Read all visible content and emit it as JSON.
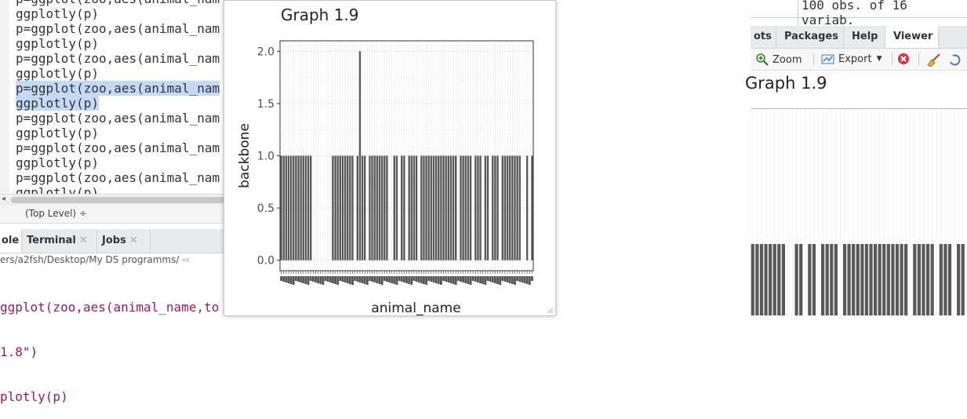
{
  "editor": {
    "code_lines": [
      "p=ggplot(zoo,aes(animal_nam",
      "ggplotly(p)",
      "p=ggplot(zoo,aes(animal_nam",
      "ggplotly(p)",
      "p=ggplot(zoo,aes(animal_nam",
      "ggplotly(p)",
      "p=ggplot(zoo,aes(animal_nam",
      "ggplotly(p)",
      "p=ggplot(zoo,aes(animal_nam",
      "ggplotly(p)",
      "p=ggplot(zoo,aes(animal_nam",
      "ggplotly(p)",
      "p=ggplot(zoo,aes(animal_nam",
      "ggplotly(p)"
    ],
    "selected_lines": [
      6,
      7
    ],
    "scope_label": "(Top Level) ÷"
  },
  "bottom_panel": {
    "tabs": [
      {
        "label": "ole",
        "active": true
      },
      {
        "label": "Terminal",
        "active": false
      },
      {
        "label": "Jobs",
        "active": false
      }
    ],
    "path": "ers/a2fsh/Desktop/My DS programms/",
    "console_lines": [
      "ggplot(zoo,aes(animal_name,to",
      "1.8\")",
      "plotly(p)"
    ]
  },
  "popup_plot": {
    "title": "Graph 1.9"
  },
  "environment": {
    "summary": "100 obs. of 16 variab."
  },
  "right_panel": {
    "tabs": [
      {
        "label": "ots",
        "active": false
      },
      {
        "label": "Packages",
        "active": false
      },
      {
        "label": "Help",
        "active": false
      },
      {
        "label": "Viewer",
        "active": true
      }
    ],
    "toolbar": {
      "zoom": "Zoom",
      "export": "Export"
    },
    "viewer_title": "Graph 1.9"
  },
  "colors": {
    "bar": "#595959",
    "grid": "#ebebeb",
    "selection": "#c5d9f5",
    "console_text": "#8b1d6b"
  },
  "chart_data": {
    "type": "bar",
    "title": "Graph 1.9",
    "xlabel": "animal_name",
    "ylabel": "backbone",
    "ylim": [
      -0.1,
      2.1
    ],
    "y_ticks": [
      "0.0",
      "0.5",
      "1.0",
      "1.5",
      "2.0"
    ],
    "y_tick_values": [
      0,
      0.5,
      1,
      1.5,
      2
    ],
    "x_tick_labels_illegible": true,
    "values": [
      1,
      1,
      1,
      1,
      1,
      1,
      1,
      1,
      1,
      1,
      1,
      1,
      1,
      0,
      0,
      0,
      0,
      0,
      0,
      0,
      0,
      1,
      1,
      1,
      1,
      1,
      1,
      1,
      1,
      1,
      0,
      1,
      2,
      1,
      1,
      0,
      1,
      1,
      1,
      1,
      1,
      1,
      1,
      1,
      0,
      0,
      1,
      1,
      0,
      1,
      1,
      0,
      1,
      1,
      1,
      1,
      0,
      1,
      1,
      1,
      1,
      1,
      1,
      1,
      1,
      1,
      1,
      1,
      1,
      1,
      1,
      1,
      0,
      1,
      1,
      1,
      1,
      1,
      0,
      1,
      1,
      1,
      0,
      1,
      1,
      0,
      1,
      1,
      1,
      0,
      1,
      1,
      1,
      1,
      1,
      1,
      1,
      1,
      0,
      0,
      1,
      0,
      1
    ]
  }
}
